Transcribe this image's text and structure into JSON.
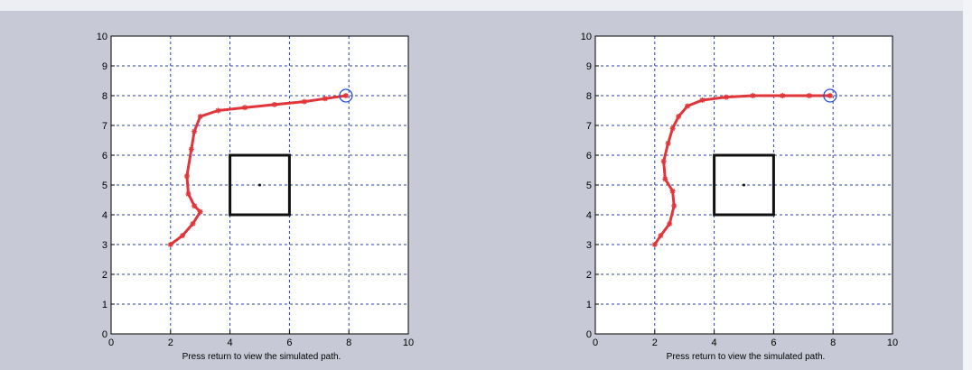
{
  "colors": {
    "window_bg": "#c7c9d6",
    "axes_bg": "#ffffff",
    "grid": "#2a3fb0",
    "path": "#e0363a",
    "target_marker": "#2a4fd0",
    "obstacle": "#111111"
  },
  "chart_data": [
    {
      "type": "line",
      "title": "",
      "xlabel": "Press return to view the simulated path.",
      "ylabel": "",
      "xlim": [
        0,
        10
      ],
      "ylim": [
        0,
        10
      ],
      "xticks": [
        "0",
        "2",
        "4",
        "6",
        "8",
        "10"
      ],
      "yticks": [
        "0",
        "1",
        "2",
        "3",
        "4",
        "5",
        "6",
        "7",
        "8",
        "9",
        "10"
      ],
      "grid": true,
      "series": [
        {
          "marker": "star",
          "x": [
            2.0,
            2.4,
            2.75,
            3.0,
            2.8,
            2.6,
            2.55,
            2.7,
            2.8,
            3.0,
            3.6,
            4.5,
            5.5,
            6.5,
            7.2,
            7.9
          ],
          "y": [
            3.0,
            3.3,
            3.7,
            4.1,
            4.3,
            4.7,
            5.3,
            6.2,
            6.8,
            7.3,
            7.5,
            7.6,
            7.7,
            7.8,
            7.9,
            8.0
          ]
        }
      ],
      "target": {
        "x": 7.9,
        "y": 8.0
      },
      "obstacle": {
        "x0": 4.0,
        "x1": 6.0,
        "y0": 4.0,
        "y1": 6.0,
        "center": [
          5.0,
          5.0
        ]
      }
    },
    {
      "type": "line",
      "title": "",
      "xlabel": "Press return to view the simulated path.",
      "ylabel": "",
      "xlim": [
        0,
        10
      ],
      "ylim": [
        0,
        10
      ],
      "xticks": [
        "0",
        "2",
        "4",
        "6",
        "8",
        "10"
      ],
      "yticks": [
        "0",
        "1",
        "2",
        "3",
        "4",
        "5",
        "6",
        "7",
        "8",
        "9",
        "10"
      ],
      "grid": true,
      "series": [
        {
          "marker": "star",
          "x": [
            2.0,
            2.2,
            2.5,
            2.65,
            2.6,
            2.35,
            2.3,
            2.45,
            2.6,
            2.8,
            3.1,
            3.6,
            4.4,
            5.3,
            6.3,
            7.2,
            7.9
          ],
          "y": [
            3.0,
            3.3,
            3.7,
            4.3,
            4.8,
            5.2,
            5.8,
            6.4,
            6.9,
            7.3,
            7.65,
            7.85,
            7.95,
            8.0,
            8.0,
            8.0,
            8.0
          ]
        }
      ],
      "target": {
        "x": 7.9,
        "y": 8.0
      },
      "obstacle": {
        "x0": 4.0,
        "x1": 6.0,
        "y0": 4.0,
        "y1": 6.0,
        "center": [
          5.0,
          5.0
        ]
      }
    }
  ]
}
